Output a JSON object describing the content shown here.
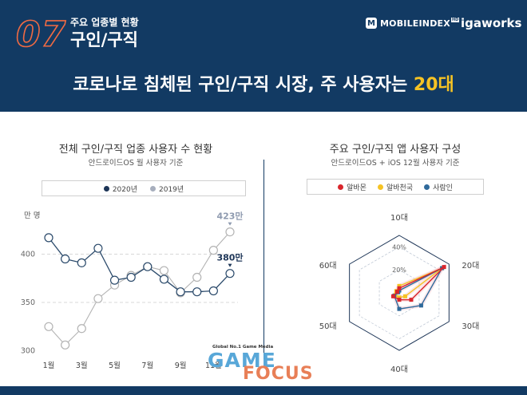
{
  "header": {
    "number": "07",
    "category_sub": "주요 업종별 현황",
    "category_main": "구인/구직",
    "logo_mobileindex": "MOBILEINDEX",
    "logo_mobileindex_tag": "HD",
    "logo_mobileindex_icon": "M",
    "logo_igaworks": "igaworks",
    "headline_main": "코로나로 침체된 구인/구직 시장, 주 사용자는 ",
    "headline_highlight": "20대"
  },
  "colors": {
    "navy": "#123a63",
    "accent_orange": "#ef6a43",
    "highlight_yellow": "#f6c324",
    "series_2020": "#2b4a6b",
    "series_2019": "#b3b3b3",
    "albamon": "#d9262c",
    "albacheonguk": "#f6c324",
    "saramin": "#2f6a9b"
  },
  "left_chart": {
    "title": "전체 구인/구직 업종 사용자 수 현황",
    "subtitle": "안드로이드OS 월 사용자 기준",
    "unit": "만 명",
    "legend": [
      "2020년",
      "2019년"
    ],
    "label_2019_last": "423만",
    "label_2020_last": "380만"
  },
  "right_chart": {
    "title": "주요 구인/구직 앱 사용자 구성",
    "subtitle": "안드로이드OS + iOS 12월 사용자 기준",
    "legend": [
      "알바몬",
      "알바천국",
      "사람인"
    ]
  },
  "watermark": {
    "small": "Global No.1 Game Media",
    "game": "GAME",
    "focus": "FOCUS"
  },
  "chart_data": [
    {
      "type": "line",
      "title": "전체 구인/구직 업종 사용자 수 현황",
      "subtitle": "안드로이드OS 월 사용자 기준",
      "ylabel": "만 명",
      "x": [
        1,
        2,
        3,
        4,
        5,
        6,
        7,
        8,
        9,
        10,
        11,
        12
      ],
      "x_tick_labels": [
        "1월",
        "",
        "3월",
        "",
        "5월",
        "",
        "7월",
        "",
        "9월",
        "",
        "11월",
        ""
      ],
      "y_ticks": [
        300,
        350,
        400
      ],
      "ylim": [
        298,
        440
      ],
      "series": [
        {
          "name": "2020년",
          "values": [
            417,
            395,
            391,
            406,
            373,
            376,
            387,
            374,
            361,
            361,
            362,
            380
          ]
        },
        {
          "name": "2019년",
          "values": [
            325,
            306,
            323,
            354,
            368,
            378,
            387,
            383,
            360,
            376,
            404,
            423
          ]
        }
      ],
      "grid": "dashed at 350 and 400",
      "legend_position": "top"
    },
    {
      "type": "radar",
      "title": "주요 구인/구직 앱 사용자 구성",
      "subtitle": "안드로이드OS + iOS 12월 사용자 기준",
      "categories": [
        "10대",
        "20대",
        "30대",
        "40대",
        "50대",
        "60대"
      ],
      "r_ticks": [
        "20%",
        "40%"
      ],
      "rlim": [
        0,
        50
      ],
      "series": [
        {
          "name": "알바몬",
          "values": [
            4,
            45,
            12,
            6,
            6,
            2
          ]
        },
        {
          "name": "알바천국",
          "values": [
            6,
            43,
            6,
            4,
            4,
            3
          ]
        },
        {
          "name": "사람인",
          "values": [
            2,
            43,
            22,
            14,
            5,
            1
          ]
        }
      ],
      "legend_position": "top"
    }
  ]
}
